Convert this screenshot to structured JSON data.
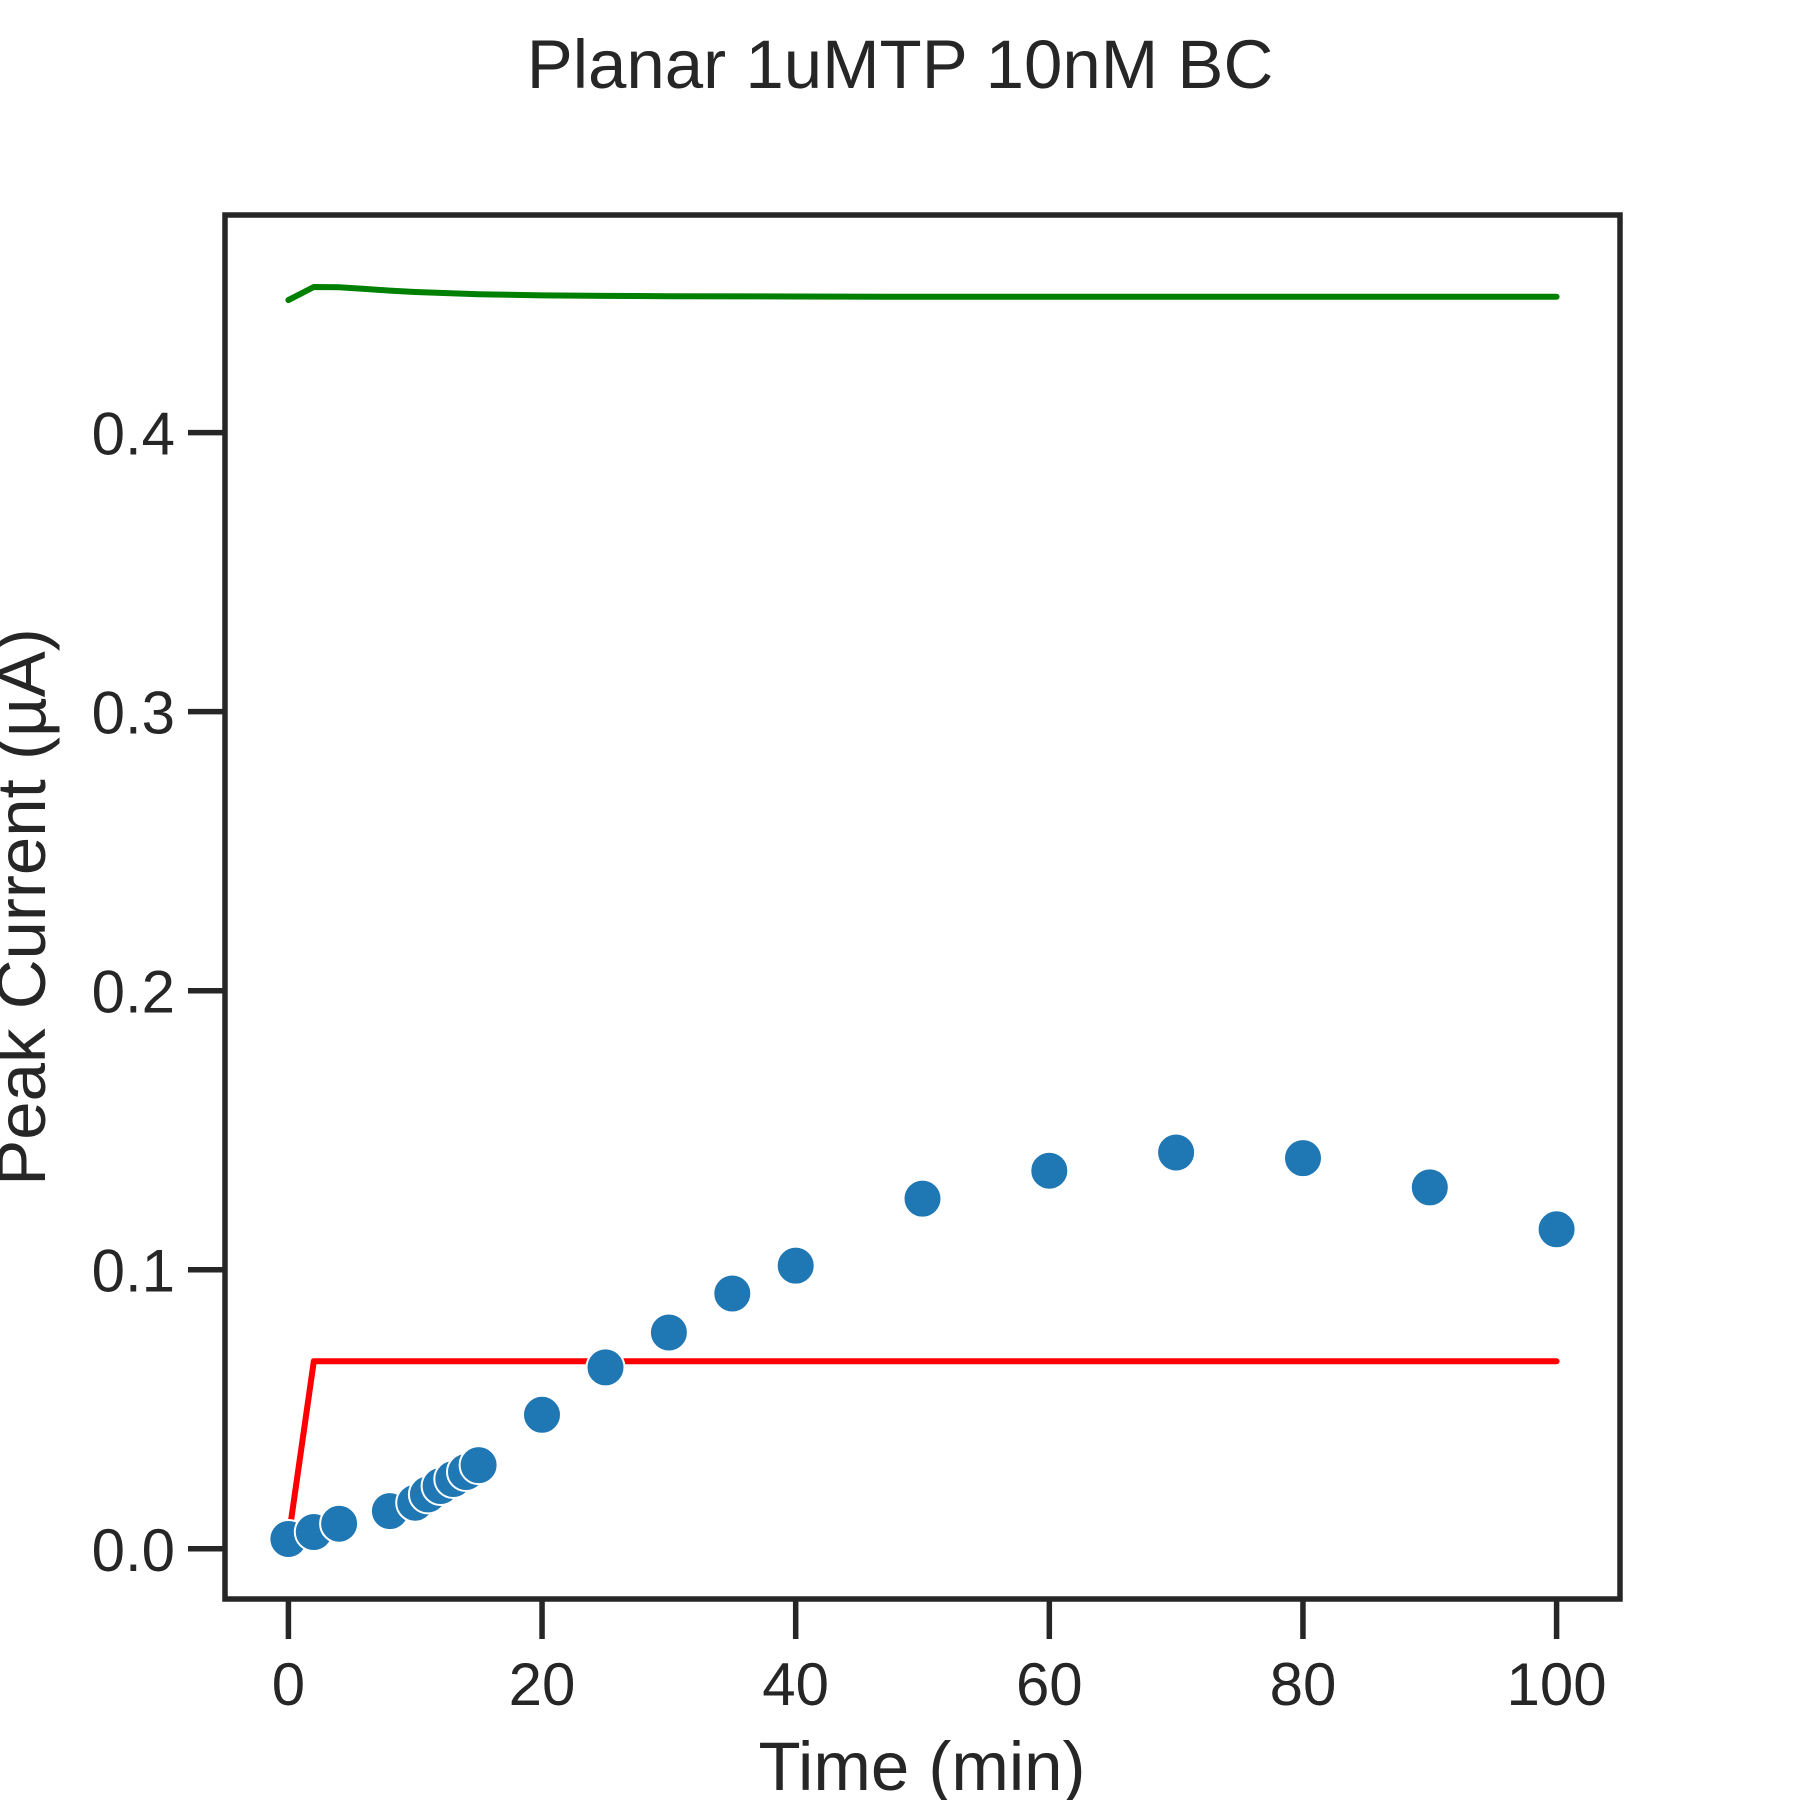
{
  "chart_data": {
    "type": "scatter",
    "title": "Planar 1uMTP 10nM BC",
    "xlabel": "Time (min)",
    "ylabel": "Peak Current (µA)",
    "xlim": [
      -5,
      105
    ],
    "ylim": [
      -0.018,
      0.478
    ],
    "x_ticks": [
      0,
      20,
      40,
      60,
      80,
      100
    ],
    "x_tick_labels": [
      "0",
      "20",
      "40",
      "60",
      "80",
      "100"
    ],
    "y_ticks": [
      0.0,
      0.1,
      0.2,
      0.3,
      0.4
    ],
    "y_tick_labels": [
      "0.0",
      "0.1",
      "0.2",
      "0.3",
      "0.4"
    ],
    "grid": false,
    "series": [
      {
        "kind": "line",
        "color": "#008000",
        "x": [
          0,
          2,
          4,
          6,
          8,
          10,
          15,
          20,
          25,
          30,
          40,
          50,
          60,
          70,
          80,
          90,
          100
        ],
        "y": [
          0.4475,
          0.4522,
          0.4521,
          0.4515,
          0.4509,
          0.4504,
          0.4496,
          0.4492,
          0.449,
          0.4489,
          0.4488,
          0.4487,
          0.4487,
          0.4487,
          0.4487,
          0.4487,
          0.4487
        ]
      },
      {
        "kind": "line",
        "color": "#ff0000",
        "x": [
          0,
          2,
          10,
          20,
          30,
          40,
          50,
          60,
          70,
          80,
          90,
          100
        ],
        "y": [
          0.0035,
          0.0672,
          0.0672,
          0.0672,
          0.0672,
          0.0672,
          0.0672,
          0.0672,
          0.0672,
          0.0672,
          0.0672,
          0.0672
        ]
      },
      {
        "kind": "scatter",
        "color": "#1f77b4",
        "x": [
          0,
          2,
          4,
          8,
          10,
          11,
          12,
          13,
          14,
          15,
          20,
          25,
          30,
          35,
          40,
          50,
          60,
          70,
          80,
          90,
          100
        ],
        "y": [
          0.0035,
          0.006,
          0.009,
          0.0135,
          0.0165,
          0.0195,
          0.0225,
          0.025,
          0.0275,
          0.03,
          0.048,
          0.065,
          0.0775,
          0.0915,
          0.1015,
          0.1255,
          0.1355,
          0.142,
          0.14,
          0.1295,
          0.1145
        ]
      }
    ]
  }
}
